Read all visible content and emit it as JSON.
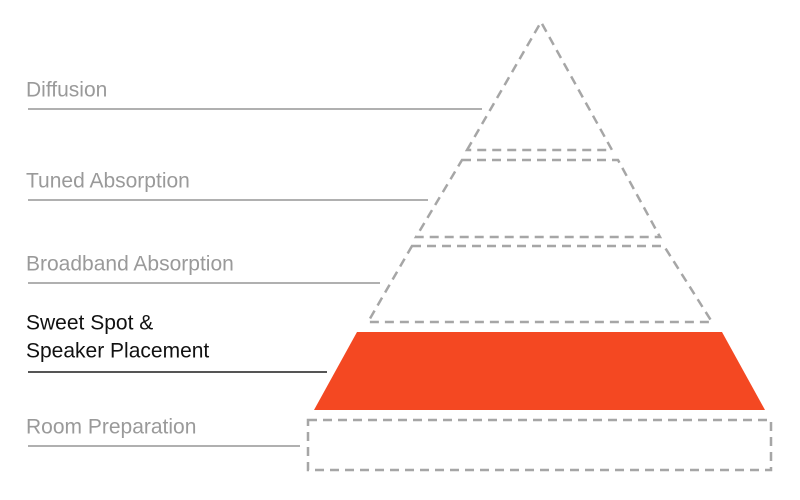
{
  "levels": [
    {
      "lines": [
        "Diffusion"
      ]
    },
    {
      "lines": [
        "Tuned Absorption"
      ]
    },
    {
      "lines": [
        "Broadband Absorption"
      ]
    },
    {
      "lines": [
        "Sweet Spot &",
        "Speaker Placement"
      ]
    },
    {
      "lines": [
        "Room Preparation"
      ]
    }
  ]
}
